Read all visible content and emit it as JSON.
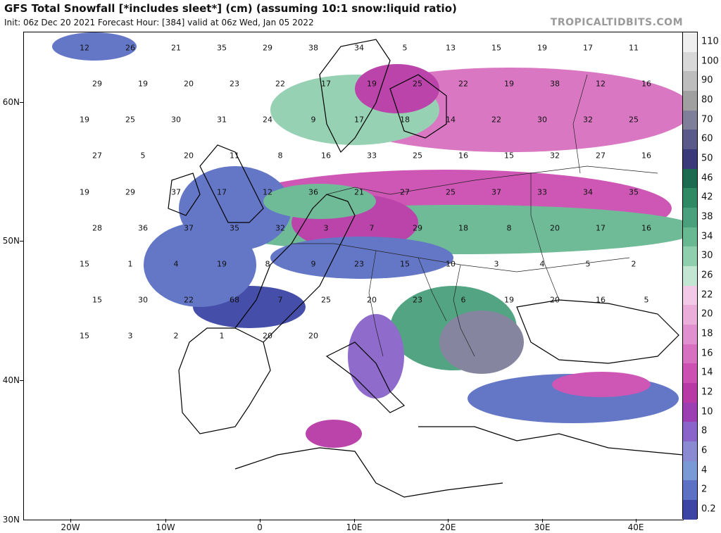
{
  "header": {
    "title": "GFS Total Snowfall [*includes sleet*] (cm) (assuming 10:1 snow:liquid ratio)",
    "subtitle": "Init: 06z Dec 20 2021   Forecast Hour: [384]   valid at 06z Wed, Jan 05 2022",
    "brand": "TROPICALTIDBITS.COM"
  },
  "axes": {
    "lat_labels": [
      "60N",
      "50N",
      "40N",
      "30N"
    ],
    "lon_labels": [
      "20W",
      "10W",
      "0",
      "10E",
      "20E",
      "30E",
      "40E"
    ]
  },
  "colorbar": {
    "labels": [
      "110",
      "100",
      "90",
      "80",
      "70",
      "60",
      "50",
      "46",
      "42",
      "38",
      "34",
      "30",
      "26",
      "22",
      "20",
      "18",
      "16",
      "14",
      "12",
      "10",
      "8",
      "6",
      "4",
      "2",
      "0.2"
    ],
    "colors": [
      "#efefef",
      "#d8d8d8",
      "#bdbdbd",
      "#a0a0a0",
      "#7f7f9a",
      "#5a5a8a",
      "#3a3a7a",
      "#1c6a50",
      "#2f8a64",
      "#4aa07c",
      "#68b892",
      "#90cfae",
      "#c2e6d2",
      "#f2c9e6",
      "#ebaedb",
      "#e090ce",
      "#d770c0",
      "#cc4fb2",
      "#b73aa6",
      "#9b3fb3",
      "#8a64c9",
      "#8a8ad2",
      "#7a9ad6",
      "#5c70c4",
      "#3c45a4"
    ]
  },
  "map": {
    "values": [
      "12",
      "26",
      "21",
      "35",
      "29",
      "38",
      "34",
      "5",
      "13",
      "15",
      "19",
      "17",
      "11",
      "29",
      "19",
      "20",
      "23",
      "22",
      "17",
      "19",
      "25",
      "22",
      "19",
      "38",
      "12",
      "16",
      "19",
      "25",
      "30",
      "31",
      "24",
      "9",
      "17",
      "18",
      "14",
      "22",
      "30",
      "32",
      "25",
      "27",
      "5",
      "20",
      "11",
      "8",
      "16",
      "33",
      "25",
      "16",
      "15",
      "32",
      "27",
      "16",
      "19",
      "29",
      "37",
      "17",
      "12",
      "36",
      "21",
      "27",
      "25",
      "37",
      "33",
      "34",
      "35",
      "28",
      "36",
      "37",
      "35",
      "32",
      "3",
      "7",
      "29",
      "18",
      "8",
      "20",
      "17",
      "16",
      "15",
      "1",
      "4",
      "19",
      "8",
      "9",
      "23",
      "15",
      "10",
      "3",
      "4",
      "5",
      "2",
      "15",
      "30",
      "22",
      "68",
      "7",
      "25",
      "20",
      "23",
      "6",
      "19",
      "20",
      "16",
      "5",
      "15",
      "3",
      "2",
      "1",
      "20",
      "20"
    ]
  }
}
